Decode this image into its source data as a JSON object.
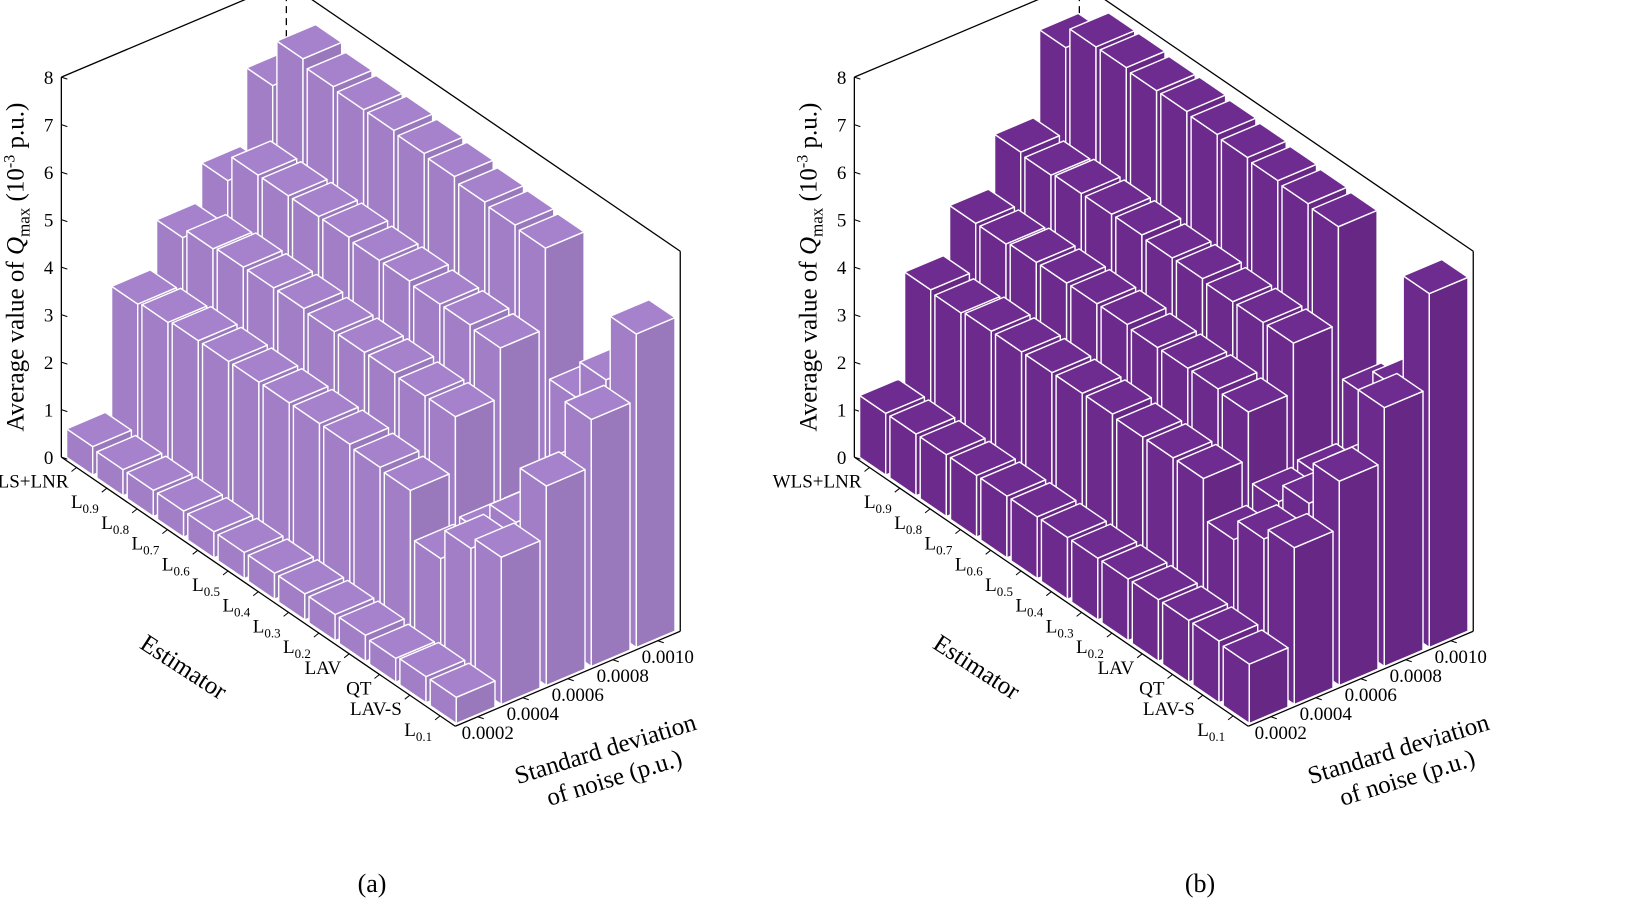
{
  "figure": {
    "caption_a": "(a)",
    "caption_b": "(b)"
  },
  "colors": {
    "panel_a_face": "#A682CC",
    "panel_b_face": "#6F2C90",
    "edge": "#FFFFFF",
    "axis": "#000000"
  },
  "axes": {
    "z_label_prefix": "Average value of ",
    "z_label_symbol": "Q",
    "z_label_subscript": "max",
    "z_label_unit_open": " (10",
    "z_label_exponent": "-3",
    "z_label_unit_close": " p.u.)",
    "estimator_label": "Estimator",
    "noise_label_line1": "Standard deviation",
    "noise_label_line2": "of noise (p.u.)",
    "z_ticks": [
      "0",
      "1",
      "2",
      "3",
      "4",
      "5",
      "6",
      "7",
      "8"
    ],
    "noise_ticks": [
      "0.0002",
      "0.0004",
      "0.0006",
      "0.0008",
      "0.0010"
    ],
    "estimators": [
      {
        "main": "WLS+LNR",
        "sub": ""
      },
      {
        "main": "L",
        "sub": "0.9"
      },
      {
        "main": "L",
        "sub": "0.8"
      },
      {
        "main": "L",
        "sub": "0.7"
      },
      {
        "main": "L",
        "sub": "0.6"
      },
      {
        "main": "L",
        "sub": "0.5"
      },
      {
        "main": "L",
        "sub": "0.4"
      },
      {
        "main": "L",
        "sub": "0.3"
      },
      {
        "main": "L",
        "sub": "0.2"
      },
      {
        "main": "LAV",
        "sub": ""
      },
      {
        "main": "QT",
        "sub": ""
      },
      {
        "main": "LAV-S",
        "sub": ""
      },
      {
        "main": "L",
        "sub": "0.1"
      }
    ]
  },
  "chart_data": [
    {
      "type": "bar3d",
      "panel": "(a)",
      "x_categories": [
        "WLS+LNR",
        "L0.9",
        "L0.8",
        "L0.7",
        "L0.6",
        "L0.5",
        "L0.4",
        "L0.3",
        "L0.2",
        "LAV",
        "QT",
        "LAV-S",
        "L0.1"
      ],
      "y_values": [
        0.0002,
        0.0004,
        0.0006,
        0.0008,
        0.001
      ],
      "zlim": [
        0,
        8
      ],
      "values": [
        [
          0.6,
          3.2,
          4.2,
          5.0,
          6.6
        ],
        [
          0.55,
          3.25,
          4.4,
          5.55,
          7.6
        ],
        [
          0.55,
          3.3,
          4.45,
          5.55,
          7.45
        ],
        [
          0.55,
          3.3,
          4.45,
          5.55,
          7.4
        ],
        [
          0.55,
          3.3,
          4.45,
          5.55,
          7.4
        ],
        [
          0.55,
          3.3,
          4.4,
          5.5,
          7.35
        ],
        [
          0.55,
          3.3,
          4.4,
          5.5,
          7.3
        ],
        [
          0.55,
          3.3,
          4.4,
          5.45,
          7.2
        ],
        [
          0.55,
          3.25,
          4.35,
          5.45,
          7.15
        ],
        [
          0.55,
          3.2,
          4.35,
          5.4,
          7.1
        ],
        [
          0.5,
          2.2,
          2.3,
          2.3,
          4.4
        ],
        [
          0.55,
          2.85,
          3.0,
          3.45,
          5.2
        ],
        [
          0.55,
          3.1,
          4.2,
          5.2,
          6.6
        ]
      ]
    },
    {
      "type": "bar3d",
      "panel": "(b)",
      "x_categories": [
        "WLS+LNR",
        "L0.9",
        "L0.8",
        "L0.7",
        "L0.6",
        "L0.5",
        "L0.4",
        "L0.3",
        "L0.2",
        "LAV",
        "QT",
        "LAV-S",
        "L0.1"
      ],
      "y_values": [
        0.0002,
        0.0004,
        0.0006,
        0.0008,
        0.001
      ],
      "zlim": [
        0,
        8
      ],
      "values": [
        [
          1.3,
          3.5,
          4.5,
          5.6,
          7.4
        ],
        [
          1.3,
          3.45,
          4.5,
          5.55,
          7.85
        ],
        [
          1.3,
          3.5,
          4.55,
          5.6,
          7.85
        ],
        [
          1.3,
          3.5,
          4.55,
          5.6,
          7.8
        ],
        [
          1.3,
          3.5,
          4.55,
          5.6,
          7.8
        ],
        [
          1.3,
          3.5,
          4.55,
          5.55,
          7.75
        ],
        [
          1.3,
          3.5,
          4.5,
          5.55,
          7.7
        ],
        [
          1.3,
          3.45,
          4.5,
          5.5,
          7.65
        ],
        [
          1.3,
          3.45,
          4.5,
          5.5,
          7.6
        ],
        [
          1.3,
          3.45,
          4.45,
          5.5,
          7.55
        ],
        [
          1.3,
          2.6,
          3.0,
          3.1,
          4.4
        ],
        [
          1.3,
          3.05,
          3.4,
          3.6,
          5.0
        ],
        [
          1.25,
          3.3,
          4.3,
          5.45,
          7.45
        ]
      ]
    }
  ]
}
